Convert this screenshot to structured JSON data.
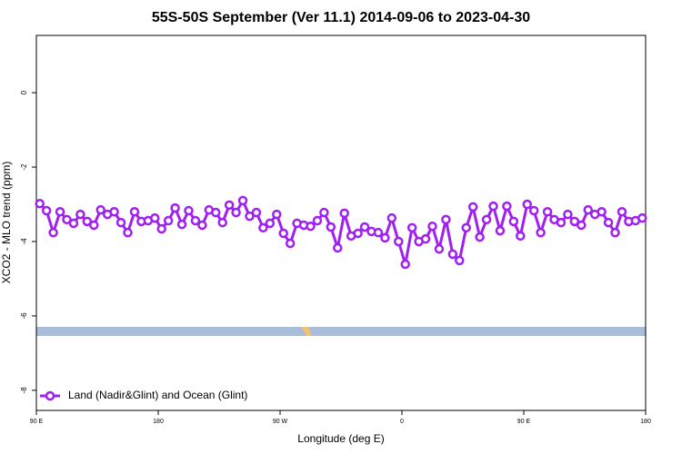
{
  "chart_data": {
    "type": "line",
    "title": "55S-50S September (Ver 11.1)   2014-09-06 to 2023-04-30",
    "x_label": "Longitude (deg E)",
    "y_label": "XCO2 - MLO trend (ppm)",
    "x": [
      92.5,
      97.5,
      102.5,
      107.5,
      112.5,
      117.5,
      122.5,
      127.5,
      132.5,
      137.5,
      142.5,
      147.5,
      152.5,
      157.5,
      162.5,
      167.5,
      172.5,
      177.5,
      182.5,
      187.5,
      192.5,
      197.5,
      202.5,
      207.5,
      212.5,
      217.5,
      222.5,
      227.5,
      232.5,
      237.5,
      242.5,
      247.5,
      252.5,
      257.5,
      262.5,
      267.5,
      272.5,
      277.5,
      282.5,
      287.5,
      292.5,
      297.5,
      302.5,
      307.5,
      312.5,
      317.5,
      322.5,
      327.5,
      332.5,
      337.5,
      342.5,
      347.5,
      352.5,
      357.5,
      362.5,
      367.5,
      372.5,
      377.5,
      382.5,
      387.5,
      392.5,
      397.5,
      402.5,
      407.5,
      412.5,
      417.5,
      422.5,
      427.5,
      432.5,
      437.5,
      442.5,
      447.5,
      452.5,
      457.5,
      462.5,
      467.5,
      472.5,
      477.5,
      482.5,
      487.5,
      492.5,
      497.5,
      502.5,
      507.5,
      512.5,
      517.5,
      522.5,
      527.5,
      532.5,
      537.5
    ],
    "series": [
      {
        "name": "Land (Nadir&Glint) and Ocean (Glint)",
        "color": "#a020f0",
        "values": [
          -2.98,
          -3.17,
          -3.76,
          -3.2,
          -3.41,
          -3.51,
          -3.27,
          -3.46,
          -3.56,
          -3.15,
          -3.27,
          -3.2,
          -3.49,
          -3.76,
          -3.2,
          -3.46,
          -3.44,
          -3.37,
          -3.66,
          -3.44,
          -3.1,
          -3.54,
          -3.17,
          -3.44,
          -3.56,
          -3.15,
          -3.22,
          -3.49,
          -3.02,
          -3.22,
          -2.9,
          -3.32,
          -3.22,
          -3.63,
          -3.51,
          -3.27,
          -3.78,
          -4.05,
          -3.51,
          -3.56,
          -3.59,
          -3.44,
          -3.22,
          -3.61,
          -4.17,
          -3.24,
          -3.85,
          -3.78,
          -3.61,
          -3.73,
          -3.76,
          -3.9,
          -3.37,
          -4.0,
          -4.61,
          -3.63,
          -4.0,
          -3.93,
          -3.59,
          -4.2,
          -3.41,
          -4.34,
          -4.51,
          -3.63,
          -3.07,
          -3.88,
          -3.41,
          -3.05,
          -3.71,
          -3.05,
          -3.46,
          -3.85,
          -3.0,
          -3.17,
          -3.76,
          -3.2,
          -3.41,
          -3.49,
          -3.27,
          -3.46,
          -3.56,
          -3.15,
          -3.27,
          -3.2,
          -3.49,
          -3.76,
          -3.2,
          -3.46,
          -3.44,
          -3.37
        ]
      }
    ],
    "xlim": [
      90,
      540
    ],
    "xticks": [
      {
        "value": 90,
        "label": "90 E"
      },
      180,
      {
        "value": 270,
        "label": "90 W"
      },
      {
        "value": 360,
        "label": "0"
      },
      {
        "value": 450,
        "label": "90 E"
      },
      {
        "value": 540,
        "label": "180"
      }
    ],
    "ylim": [
      -8.54,
      1.54
    ],
    "yticks": [
      0,
      -2,
      -4,
      -6,
      -8
    ],
    "legend": "bottom-left"
  }
}
